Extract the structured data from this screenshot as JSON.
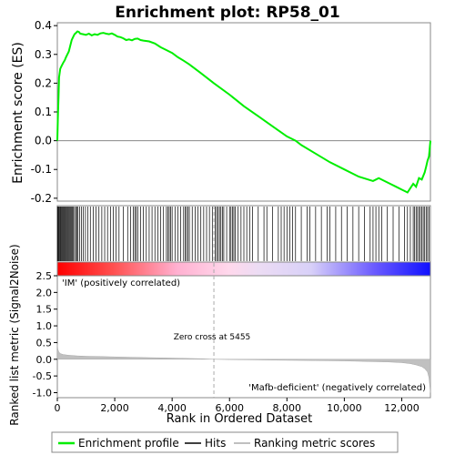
{
  "chart_data": {
    "type": "line",
    "title": "Enrichment plot: RP58_01",
    "es_panel": {
      "ylabel": "Enrichment score (ES)",
      "ylim": [
        -0.21,
        0.41
      ],
      "yticks": [
        "0.4",
        "0.3",
        "0.2",
        "0.1",
        "0.0",
        "-0.1",
        "-0.2"
      ],
      "ytick_values": [
        0.4,
        0.3,
        0.2,
        0.1,
        0.0,
        -0.1,
        -0.2
      ],
      "x": [
        0,
        20,
        40,
        60,
        100,
        150,
        200,
        260,
        300,
        350,
        400,
        450,
        500,
        550,
        600,
        650,
        700,
        750,
        800,
        900,
        1000,
        1100,
        1200,
        1300,
        1400,
        1500,
        1600,
        1700,
        1800,
        1900,
        2000,
        2100,
        2200,
        2300,
        2400,
        2500,
        2600,
        2700,
        2800,
        2900,
        3000,
        3200,
        3400,
        3600,
        3800,
        4000,
        4200,
        4400,
        4600,
        4800,
        5000,
        5455,
        6000,
        6500,
        7000,
        7500,
        8000,
        8300,
        8500,
        9000,
        9500,
        10000,
        10500,
        11000,
        11100,
        11200,
        11400,
        11600,
        11800,
        12000,
        12100,
        12200,
        12300,
        12400,
        12450,
        12500,
        12600,
        12700,
        12800,
        12850,
        12900,
        12950,
        12999
      ],
      "y": [
        0.0,
        0.08,
        0.15,
        0.22,
        0.25,
        0.26,
        0.27,
        0.28,
        0.29,
        0.3,
        0.31,
        0.33,
        0.35,
        0.36,
        0.37,
        0.375,
        0.38,
        0.378,
        0.372,
        0.37,
        0.368,
        0.372,
        0.366,
        0.37,
        0.368,
        0.373,
        0.375,
        0.372,
        0.37,
        0.373,
        0.368,
        0.362,
        0.36,
        0.356,
        0.35,
        0.352,
        0.349,
        0.354,
        0.355,
        0.35,
        0.348,
        0.345,
        0.338,
        0.325,
        0.315,
        0.305,
        0.29,
        0.278,
        0.265,
        0.25,
        0.235,
        0.2,
        0.16,
        0.12,
        0.085,
        0.05,
        0.015,
        0.0,
        -0.015,
        -0.045,
        -0.075,
        -0.1,
        -0.125,
        -0.14,
        -0.135,
        -0.13,
        -0.14,
        -0.15,
        -0.16,
        -0.17,
        -0.175,
        -0.18,
        -0.165,
        -0.15,
        -0.155,
        -0.16,
        -0.13,
        -0.135,
        -0.11,
        -0.09,
        -0.07,
        -0.055,
        0.0
      ]
    },
    "hits": [
      5,
      30,
      55,
      80,
      105,
      130,
      160,
      190,
      220,
      250,
      280,
      310,
      340,
      370,
      400,
      430,
      460,
      490,
      520,
      560,
      600,
      640,
      680,
      720,
      780,
      840,
      900,
      980,
      1060,
      1150,
      1250,
      1350,
      1450,
      1550,
      1650,
      1750,
      1850,
      1950,
      2050,
      2150,
      2300,
      2450,
      2550,
      2650,
      2700,
      2750,
      2800,
      2900,
      3000,
      3100,
      3200,
      3300,
      3400,
      3500,
      3600,
      3700,
      3800,
      3850,
      3900,
      3950,
      4000,
      4100,
      4200,
      4300,
      4400,
      4450,
      4500,
      4550,
      4600,
      4700,
      4800,
      4900,
      5000,
      5100,
      5200,
      5300,
      5400,
      5500,
      5550,
      5600,
      5650,
      5700,
      5750,
      5800,
      5900,
      6000,
      6050,
      6100,
      6150,
      6200,
      6300,
      6400,
      6500,
      6600,
      6700,
      6800,
      7000,
      7200,
      7300,
      7500,
      7700,
      7800,
      7900,
      8000,
      8100,
      8200,
      8300,
      8500,
      8700,
      8800,
      9000,
      9200,
      9400,
      9500,
      9700,
      9900,
      10100,
      10300,
      10500,
      10700,
      10900,
      11000,
      11100,
      11200,
      11300,
      11500,
      11700,
      11900,
      12100,
      12200,
      12300,
      12400,
      12450,
      12500,
      12550,
      12600,
      12650,
      12700,
      12750,
      12800,
      12850,
      12900,
      12950
    ],
    "metric_panel": {
      "ylabel": "Ranked list metric (Signal2Noise)",
      "ylim": [
        -1.15,
        2.5
      ],
      "yticks": [
        "2.5",
        "2.0",
        "1.5",
        "1.0",
        "0.5",
        "0.0",
        "-0.5",
        "-1.0"
      ],
      "ytick_values": [
        2.5,
        2.0,
        1.5,
        1.0,
        0.5,
        0.0,
        -0.5,
        -1.0
      ],
      "x": [
        0,
        20,
        50,
        100,
        200,
        400,
        700,
        1000,
        1500,
        2000,
        3000,
        4000,
        5000,
        5455,
        6000,
        7000,
        8000,
        9000,
        10000,
        11000,
        11500,
        12000,
        12300,
        12500,
        12700,
        12800,
        12900,
        12950,
        12999
      ],
      "y": [
        0.45,
        0.3,
        0.22,
        0.17,
        0.14,
        0.12,
        0.1,
        0.09,
        0.08,
        0.07,
        0.05,
        0.035,
        0.015,
        0.0,
        -0.01,
        -0.02,
        -0.03,
        -0.04,
        -0.05,
        -0.07,
        -0.08,
        -0.1,
        -0.13,
        -0.17,
        -0.22,
        -0.28,
        -0.38,
        -0.55,
        -1.0
      ],
      "zero_cross_label": "Zero cross at 5455",
      "zero_cross": 5455,
      "pos_label": "'IM' (positively correlated)",
      "neg_label": "'Mafb-deficient' (negatively correlated)"
    },
    "xlabel": "Rank in Ordered Dataset",
    "xlim": [
      0,
      13000
    ],
    "xticks": [
      "0",
      "2,000",
      "4,000",
      "6,000",
      "8,000",
      "10,000",
      "12,000"
    ],
    "xtick_values": [
      0,
      2000,
      4000,
      6000,
      8000,
      10000,
      12000
    ],
    "legend": {
      "placement": "bottom",
      "entries": [
        "Enrichment profile",
        "Hits",
        "Ranking metric scores"
      ]
    },
    "colors": {
      "profile": "#00ee00",
      "hits": "#000000",
      "metric": "#c0c0c0",
      "pos_label": "#cc0000",
      "neg_label": "#0000cc",
      "bar_pos": "#ff0000",
      "bar_neg": "#0000ff"
    }
  }
}
